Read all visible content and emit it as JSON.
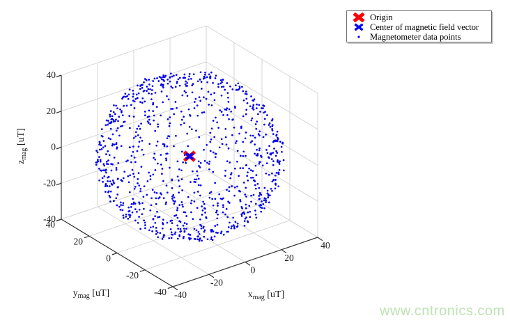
{
  "figure": {
    "background": "#ffffff",
    "watermark": {
      "text": "www.cntronics.com",
      "color": "#bfe2b3"
    }
  },
  "legend": {
    "items": [
      {
        "label": "Origin",
        "marker": "thick-x",
        "color": "#ff0000"
      },
      {
        "label": "Center of magnetic field vector",
        "marker": "x",
        "color": "#0000ff"
      },
      {
        "label": "Magnetometer data points",
        "marker": "dot",
        "color": "#0000ee"
      }
    ]
  },
  "chart_data": {
    "type": "scatter",
    "projection": "3d",
    "title": "",
    "view": {
      "azimuth_deg": -37.5,
      "elevation_deg": 30
    },
    "grid": true,
    "grid_color": "#d2d2d2",
    "axis_color": "#333333",
    "axes": {
      "x": {
        "label_base": "x",
        "label_sub": "mag",
        "label_unit": "[uT]",
        "range": [
          -40,
          40
        ],
        "ticks": [
          -40,
          -20,
          0,
          20,
          40
        ]
      },
      "y": {
        "label_base": "y",
        "label_sub": "mag",
        "label_unit": "[uT]",
        "range": [
          -40,
          40
        ],
        "ticks": [
          -40,
          -20,
          0,
          20,
          40
        ]
      },
      "z": {
        "label_base": "z",
        "label_sub": "mag",
        "label_unit": "[uT]",
        "range": [
          -40,
          40
        ],
        "ticks": [
          -40,
          -20,
          0,
          20,
          40
        ]
      }
    },
    "series": [
      {
        "name": "Origin",
        "marker": "thick-x",
        "color": "#ff0000",
        "points": [
          [
            0,
            0,
            0
          ]
        ]
      },
      {
        "name": "Center of magnetic field vector",
        "marker": "x",
        "color": "#0000ff",
        "points": [
          [
            0,
            0,
            0
          ]
        ]
      },
      {
        "name": "Magnetometer data points",
        "marker": "dot",
        "color": "#0000ee",
        "point_cloud": {
          "shape": "sphere_surface",
          "center_uT": [
            0,
            0,
            0
          ],
          "radius_uT": 40,
          "count": 1000,
          "noise_sigma_uT": 0.7,
          "seed": 7
        }
      }
    ]
  }
}
